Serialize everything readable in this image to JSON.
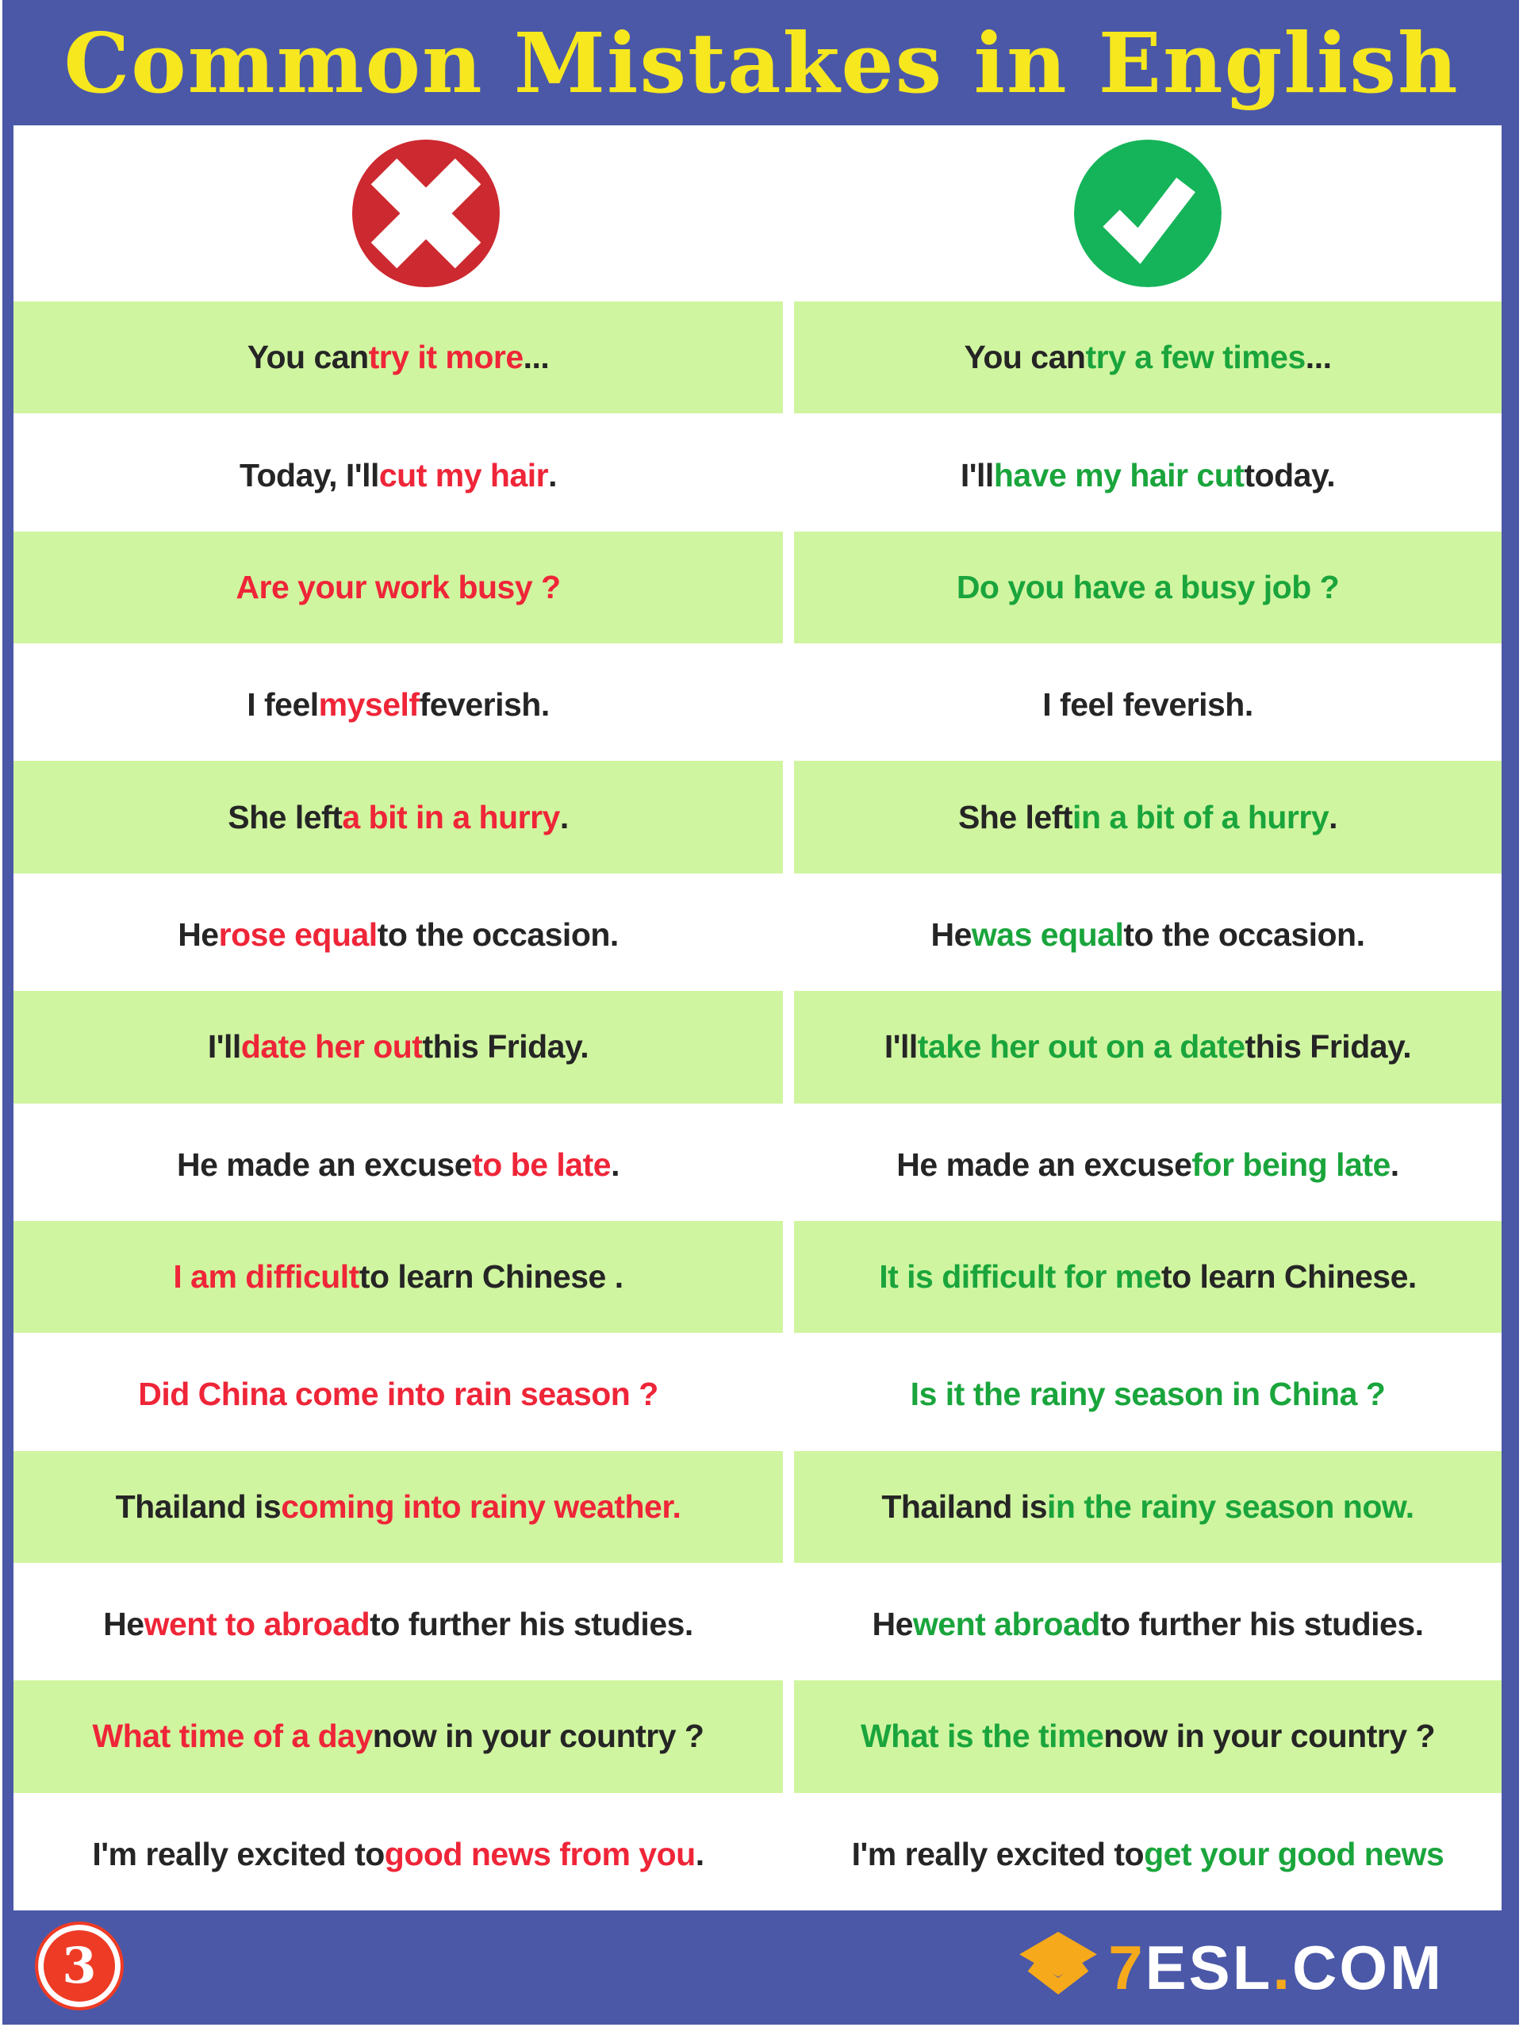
{
  "title": "Common Mistakes in English",
  "legend": {
    "wrong_icon": "cross-icon",
    "correct_icon": "check-icon"
  },
  "colors": {
    "frame_blue": "#4b58a7",
    "title_yellow": "#f6e71f",
    "row_green_bg": "#d0f5a0",
    "text_dark": "#252525",
    "wrong_accent": "#ef2538",
    "correct_accent": "#1aa53c",
    "cross_circle": "#cd2930",
    "check_circle": "#15b45a",
    "badge_red": "#ee3b25",
    "logo_orange": "#f6a91b"
  },
  "rows": [
    {
      "wrong": [
        {
          "t": "You can ",
          "c": "d"
        },
        {
          "t": "try it more",
          "c": "r"
        },
        {
          "t": " ...",
          "c": "d"
        }
      ],
      "correct": [
        {
          "t": "You can ",
          "c": "d"
        },
        {
          "t": "try a few times",
          "c": "g"
        },
        {
          "t": " ...",
          "c": "d"
        }
      ]
    },
    {
      "wrong": [
        {
          "t": "Today, I'll ",
          "c": "d"
        },
        {
          "t": "cut my hair",
          "c": "r"
        },
        {
          "t": ".",
          "c": "d"
        }
      ],
      "correct": [
        {
          "t": "I'll ",
          "c": "d"
        },
        {
          "t": "have my hair cut",
          "c": "g"
        },
        {
          "t": " today.",
          "c": "d"
        }
      ]
    },
    {
      "wrong": [
        {
          "t": "Are your work busy ?",
          "c": "r"
        }
      ],
      "correct": [
        {
          "t": "Do you have a busy job ?",
          "c": "g"
        }
      ]
    },
    {
      "wrong": [
        {
          "t": "I feel ",
          "c": "d"
        },
        {
          "t": "myself",
          "c": "r"
        },
        {
          "t": " feverish.",
          "c": "d"
        }
      ],
      "correct": [
        {
          "t": "I feel feverish.",
          "c": "d"
        }
      ]
    },
    {
      "wrong": [
        {
          "t": "She left ",
          "c": "d"
        },
        {
          "t": "a bit in a hurry",
          "c": "r"
        },
        {
          "t": ".",
          "c": "d"
        }
      ],
      "correct": [
        {
          "t": "She left ",
          "c": "d"
        },
        {
          "t": "in a bit of a hurry",
          "c": "g"
        },
        {
          "t": ".",
          "c": "d"
        }
      ]
    },
    {
      "wrong": [
        {
          "t": "He ",
          "c": "d"
        },
        {
          "t": "rose equal",
          "c": "r"
        },
        {
          "t": " to the occasion.",
          "c": "d"
        }
      ],
      "correct": [
        {
          "t": "He ",
          "c": "d"
        },
        {
          "t": "was equal",
          "c": "g"
        },
        {
          "t": " to the occasion.",
          "c": "d"
        }
      ]
    },
    {
      "wrong": [
        {
          "t": "I'll ",
          "c": "d"
        },
        {
          "t": "date her out",
          "c": "r"
        },
        {
          "t": " this Friday.",
          "c": "d"
        }
      ],
      "correct": [
        {
          "t": "I'll ",
          "c": "d"
        },
        {
          "t": "take her out on a date",
          "c": "g"
        },
        {
          "t": " this Friday.",
          "c": "d"
        }
      ]
    },
    {
      "wrong": [
        {
          "t": "He made an excuse ",
          "c": "d"
        },
        {
          "t": "to be late",
          "c": "r"
        },
        {
          "t": ".",
          "c": "d"
        }
      ],
      "correct": [
        {
          "t": "He made an excuse ",
          "c": "d"
        },
        {
          "t": "for being late",
          "c": "g"
        },
        {
          "t": ".",
          "c": "d"
        }
      ]
    },
    {
      "wrong": [
        {
          "t": "I am difficult",
          "c": "r"
        },
        {
          "t": " to learn Chinese .",
          "c": "d"
        }
      ],
      "correct": [
        {
          "t": "It is difficult for me",
          "c": "g"
        },
        {
          "t": " to learn Chinese.",
          "c": "d"
        }
      ]
    },
    {
      "wrong": [
        {
          "t": "Did China come into rain season ?",
          "c": "r"
        }
      ],
      "correct": [
        {
          "t": "Is it the rainy season in China ?",
          "c": "g"
        }
      ]
    },
    {
      "wrong": [
        {
          "t": "Thailand is ",
          "c": "d"
        },
        {
          "t": "coming into rainy weather.",
          "c": "r"
        }
      ],
      "correct": [
        {
          "t": "Thailand is ",
          "c": "d"
        },
        {
          "t": "in the rainy season now.",
          "c": "g"
        }
      ]
    },
    {
      "wrong": [
        {
          "t": "He ",
          "c": "d"
        },
        {
          "t": "went to abroad",
          "c": "r"
        },
        {
          "t": " to further his studies.",
          "c": "d"
        }
      ],
      "correct": [
        {
          "t": "He ",
          "c": "d"
        },
        {
          "t": "went abroad",
          "c": "g"
        },
        {
          "t": " to further his studies.",
          "c": "d"
        }
      ]
    },
    {
      "wrong": [
        {
          "t": "What time of a day",
          "c": "r"
        },
        {
          "t": " now in your country ?",
          "c": "d"
        }
      ],
      "correct": [
        {
          "t": "What is the time",
          "c": "g"
        },
        {
          "t": " now in your country ?",
          "c": "d"
        }
      ]
    },
    {
      "wrong": [
        {
          "t": "I'm really excited to ",
          "c": "d"
        },
        {
          "t": "good news from you",
          "c": "r"
        },
        {
          "t": ".",
          "c": "d"
        }
      ],
      "correct": [
        {
          "t": "I'm really excited to ",
          "c": "d"
        },
        {
          "t": "get your good news",
          "c": "g"
        }
      ]
    }
  ],
  "footer": {
    "badge": "3",
    "logo_segments": [
      {
        "t": "7",
        "c": "orange"
      },
      {
        "t": "ESL",
        "c": "white"
      },
      {
        "t": ".",
        "c": "orange"
      },
      {
        "t": "COM",
        "c": "white"
      }
    ]
  }
}
